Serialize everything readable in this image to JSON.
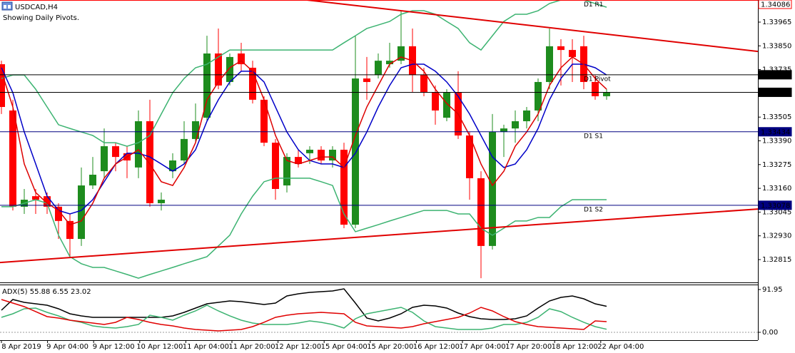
{
  "header": {
    "symbol": "USDCAD,H4",
    "note": "Showing Daily Pivots."
  },
  "chart_data": [
    {
      "type": "candlestick",
      "ylim": [
        1.32708,
        1.34072
      ],
      "yticks": [
        1.32815,
        {
          "value": 1.3293,
          "label": "1.32930"
        },
        1.33045,
        {
          "value": 1.3316,
          "label": "1.33160"
        },
        1.33275,
        {
          "value": 1.3339,
          "label": "1.33390"
        },
        1.33505,
        1.33735,
        {
          "value": 1.3385,
          "label": "1.33850"
        },
        1.33965
      ],
      "x_labels": [
        "8 Apr 2019",
        "9 Apr 04:00",
        "9 Apr 12:00",
        "10 Apr 12:00",
        "11 Apr 04:00",
        "11 Apr 20:00",
        "12 Apr 12:00",
        "15 Apr 04:00",
        "15 Apr 20:00",
        "16 Apr 12:00",
        "17 Apr 04:00",
        "17 Apr 20:00",
        "18 Apr 12:00",
        "22 Apr 04:00"
      ],
      "up_color": "#1e8c1e",
      "down_color": "#ff0000",
      "open": [
        1.33761,
        1.33537,
        1.33071,
        1.33122,
        1.33122,
        1.33071,
        1.33002,
        1.32915,
        1.33174,
        1.33243,
        1.33364,
        1.3333,
        1.33261,
        1.33485,
        1.33088,
        1.33243,
        1.33295,
        1.33399,
        1.33502,
        1.33813,
        1.33675,
        1.33813,
        1.33744,
        1.33589,
        1.33381,
        1.33174,
        1.33312,
        1.3333,
        1.33347,
        1.33295,
        1.33347,
        1.32984,
        1.33692,
        1.33709,
        1.33761,
        1.33778,
        1.33848,
        1.33709,
        1.33623,
        1.33502,
        1.33623,
        1.33416,
        1.33209,
        1.32881,
        1.33433,
        1.3345,
        1.33485,
        1.33537,
        1.33675,
        1.33848,
        1.3383,
        1.33848,
        1.33675,
        1.33606
      ],
      "high": [
        1.33778,
        1.33589,
        1.33157,
        1.33157,
        1.3314,
        1.33088,
        1.33036,
        1.33261,
        1.33312,
        1.3345,
        1.33381,
        1.33364,
        1.33537,
        1.33589,
        1.3314,
        1.3333,
        1.33485,
        1.33571,
        1.33899,
        1.33934,
        1.33813,
        1.33865,
        1.33778,
        1.33606,
        1.33399,
        1.3333,
        1.33347,
        1.33364,
        1.33364,
        1.33364,
        1.33381,
        1.33899,
        1.33796,
        1.33813,
        1.33865,
        1.3402,
        1.33934,
        1.33744,
        1.33658,
        1.3364,
        1.33727,
        1.33433,
        1.33243,
        1.3352,
        1.33468,
        1.33537,
        1.33554,
        1.33692,
        1.33934,
        1.33882,
        1.33882,
        1.33899,
        1.33709,
        1.3364
      ],
      "low": [
        1.3352,
        1.33053,
        1.33036,
        1.33036,
        1.33036,
        1.32915,
        1.32829,
        1.32881,
        1.33157,
        1.33209,
        1.33243,
        1.33209,
        1.33209,
        1.33071,
        1.33053,
        1.33209,
        1.33278,
        1.33381,
        1.33485,
        1.3364,
        1.33658,
        1.33727,
        1.33571,
        1.33364,
        1.33105,
        1.3314,
        1.33261,
        1.33278,
        1.33278,
        1.33261,
        1.32967,
        1.32967,
        1.33589,
        1.33692,
        1.33744,
        1.33761,
        1.33623,
        1.33606,
        1.33468,
        1.33485,
        1.33399,
        1.33105,
        1.32725,
        1.32864,
        1.33312,
        1.33381,
        1.3345,
        1.33485,
        1.3364,
        1.33658,
        1.33675,
        1.3364,
        1.33589,
        1.33589
      ],
      "close": [
        1.33554,
        1.33071,
        1.33105,
        1.33105,
        1.33071,
        1.33002,
        1.32915,
        1.33174,
        1.33226,
        1.33364,
        1.33312,
        1.33295,
        1.33485,
        1.33088,
        1.33105,
        1.33295,
        1.33399,
        1.33485,
        1.33813,
        1.33658,
        1.33796,
        1.33761,
        1.33589,
        1.33381,
        1.33157,
        1.33312,
        1.33278,
        1.33347,
        1.33295,
        1.33347,
        1.32984,
        1.33692,
        1.33675,
        1.33778,
        1.33778,
        1.33848,
        1.33709,
        1.33623,
        1.33537,
        1.33623,
        1.33416,
        1.33209,
        1.32881,
        1.33433,
        1.3345,
        1.33485,
        1.33537,
        1.33675,
        1.33848,
        1.3383,
        1.33796,
        1.33675,
        1.33606,
        1.33623
      ],
      "series": [
        {
          "color": "#3cb371",
          "values": [
            1.33692,
            1.33709,
            1.33709,
            1.3364,
            1.33554,
            1.33468,
            1.3345,
            1.33433,
            1.33416,
            1.33381,
            1.33381,
            1.33364,
            1.33381,
            1.33416,
            1.3352,
            1.33623,
            1.33692,
            1.33744,
            1.33761,
            1.33796,
            1.3383,
            1.3383,
            1.3383,
            1.3383,
            1.3383,
            1.3383,
            1.3383,
            1.3383,
            1.3383,
            1.3383,
            1.33865,
            1.33899,
            1.33934,
            1.33951,
            1.33968,
            1.34003,
            1.3402,
            1.3402,
            1.34003,
            1.33968,
            1.33934,
            1.33865,
            1.3383,
            1.33899,
            1.33968,
            1.34003,
            1.34003,
            1.3402,
            1.34055,
            1.34072,
            1.34072,
            1.34072,
            1.34055,
            1.34037
          ]
        },
        {
          "color": "#3cb371",
          "values": [
            1.33071,
            1.33071,
            1.33088,
            1.33105,
            1.33088,
            1.32933,
            1.32829,
            1.32795,
            1.32777,
            1.32777,
            1.3276,
            1.32743,
            1.32725,
            1.32743,
            1.3276,
            1.32777,
            1.32795,
            1.32812,
            1.32829,
            1.32881,
            1.32933,
            1.33036,
            1.33122,
            1.33192,
            1.33209,
            1.33209,
            1.33209,
            1.33209,
            1.33192,
            1.33174,
            1.33036,
            1.3295,
            1.32967,
            1.32984,
            1.33002,
            1.33019,
            1.33036,
            1.33053,
            1.33053,
            1.33053,
            1.33036,
            1.33036,
            1.32967,
            1.32933,
            1.32967,
            1.33002,
            1.33002,
            1.33019,
            1.33019,
            1.33071,
            1.33105,
            1.33105,
            1.33105,
            1.33105
          ]
        },
        {
          "color": "#0000c8",
          "values": [
            1.33744,
            1.33623,
            1.33433,
            1.33278,
            1.33122,
            1.33053,
            1.33036,
            1.33053,
            1.33105,
            1.33192,
            1.33278,
            1.3333,
            1.3333,
            1.33312,
            1.33278,
            1.33243,
            1.33278,
            1.33347,
            1.33485,
            1.33589,
            1.33675,
            1.33727,
            1.33727,
            1.33675,
            1.33554,
            1.33433,
            1.33347,
            1.33295,
            1.33278,
            1.33278,
            1.33261,
            1.3333,
            1.33433,
            1.33554,
            1.33658,
            1.33744,
            1.33761,
            1.33761,
            1.33727,
            1.33675,
            1.33606,
            1.3352,
            1.33416,
            1.33312,
            1.33261,
            1.33278,
            1.33347,
            1.3345,
            1.33589,
            1.33692,
            1.33761,
            1.33761,
            1.33744,
            1.33709
          ]
        },
        {
          "color": "#dd0000",
          "values": [
            1.33727,
            1.33554,
            1.33278,
            1.3314,
            1.33088,
            1.33053,
            1.32984,
            1.33002,
            1.33088,
            1.33209,
            1.33278,
            1.33312,
            1.33347,
            1.33278,
            1.33192,
            1.33174,
            1.33261,
            1.33381,
            1.33589,
            1.33675,
            1.33744,
            1.33778,
            1.33727,
            1.33589,
            1.33416,
            1.33295,
            1.33278,
            1.33295,
            1.33312,
            1.33312,
            1.33261,
            1.33416,
            1.33554,
            1.33658,
            1.33761,
            1.33796,
            1.33778,
            1.33727,
            1.3364,
            1.33571,
            1.3352,
            1.33416,
            1.33278,
            1.33174,
            1.33243,
            1.33364,
            1.33433,
            1.3352,
            1.33658,
            1.33744,
            1.33796,
            1.33761,
            1.33692,
            1.3364
          ]
        }
      ],
      "trendlines": [
        {
          "color": "#e00000",
          "x": [
            26.75,
            66.25
          ],
          "y": [
            1.34072,
            1.33823
          ]
        },
        {
          "color": "#e00000",
          "x": [
            -0.125,
            66.25
          ],
          "y": [
            1.32801,
            1.3306
          ]
        }
      ],
      "levels": [
        {
          "name": "D1 R1",
          "value": 1.34086,
          "color": "#ff0000"
        },
        {
          "name": "D1 Pivot",
          "value": 1.3371,
          "label": "1.33710",
          "color": "#000000"
        },
        {
          "value": 1.33625,
          "color": "#000000"
        },
        {
          "name": "D1 S1",
          "value": 1.33434,
          "color": "#000080"
        },
        {
          "name": "D1 S2",
          "value": 1.33078,
          "color": "#000080"
        }
      ]
    },
    {
      "type": "line",
      "title": "ADX(5) 55.88 6.55 23.02",
      "ylim": [
        -16.9,
        102.7
      ],
      "yticks": [
        91.95,
        {
          "value": 0,
          "label": "0.00"
        }
      ],
      "series": [
        {
          "color": "#000000",
          "values": [
            47.51,
            70.5,
            64.37,
            61.3,
            58.24,
            50.57,
            39.85,
            35.25,
            32.18,
            32.18,
            32.18,
            32.18,
            32.18,
            32.18,
            32.18,
            35.25,
            42.91,
            52.11,
            61.3,
            64.37,
            67.43,
            65.9,
            62.83,
            59.77,
            62.83,
            78.16,
            82.76,
            85.82,
            87.35,
            88.89,
            93.48,
            62.83,
            30.65,
            24.52,
            30.65,
            39.85,
            53.64,
            58.24,
            56.7,
            52.11,
            41.38,
            33.72,
            29.12,
            27.59,
            27.59,
            29.12,
            35.25,
            52.11,
            67.43,
            75.09,
            78.16,
            72.03,
            61.3,
            55.88
          ]
        },
        {
          "color": "#3cb371",
          "values": [
            32.18,
            39.85,
            50.57,
            52.11,
            42.91,
            35.25,
            26.05,
            21.46,
            13.79,
            10.73,
            9.2,
            12.26,
            16.86,
            36.78,
            32.18,
            26.05,
            36.78,
            45.98,
            58.24,
            45.98,
            35.25,
            26.05,
            19.92,
            16.86,
            16.86,
            16.86,
            19.92,
            24.52,
            21.46,
            16.86,
            9.2,
            29.12,
            39.85,
            44.44,
            49.04,
            53.64,
            42.91,
            24.52,
            12.26,
            9.2,
            6.13,
            6.13,
            6.13,
            9.2,
            16.86,
            16.86,
            21.46,
            32.18,
            50.57,
            44.44,
            32.18,
            21.46,
            12.26,
            6.55
          ]
        },
        {
          "color": "#e00000",
          "values": [
            70.5,
            62.83,
            55.17,
            44.44,
            33.72,
            30.65,
            26.05,
            22.99,
            19.92,
            16.86,
            21.46,
            32.18,
            27.59,
            21.46,
            16.86,
            13.79,
            9.2,
            6.13,
            4.6,
            3.07,
            4.6,
            6.13,
            12.26,
            21.46,
            32.18,
            36.78,
            39.85,
            41.38,
            42.91,
            41.38,
            39.85,
            21.46,
            13.79,
            12.26,
            10.73,
            9.2,
            12.26,
            18.39,
            22.99,
            27.59,
            32.18,
            41.38,
            53.64,
            45.98,
            33.72,
            22.99,
            16.86,
            12.26,
            10.73,
            9.2,
            7.66,
            6.13,
            24.52,
            23.02
          ]
        }
      ]
    }
  ]
}
